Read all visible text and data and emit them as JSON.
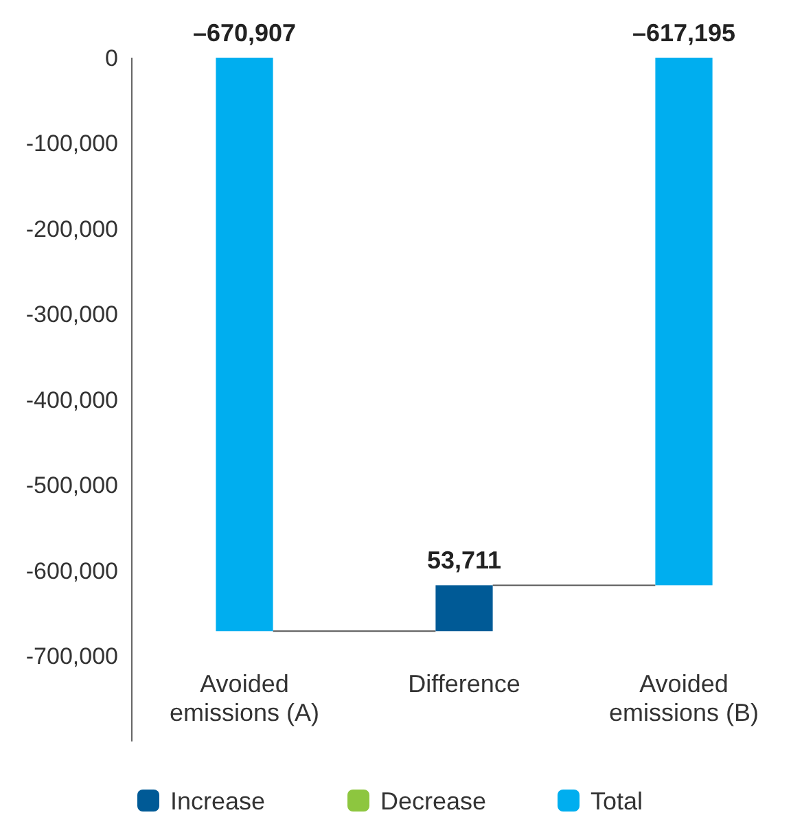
{
  "chart_data": {
    "type": "bar",
    "categories": [
      "Avoided emissions (A)",
      "Difference",
      "Avoided emissions (B)"
    ],
    "series": [
      {
        "name": "Increase",
        "color": "#005a96",
        "values": [
          null,
          53711,
          null
        ],
        "base": [
          null,
          -670907,
          null
        ],
        "value_labels": [
          null,
          "53,711",
          null
        ]
      },
      {
        "name": "Decrease",
        "color": "#8dc63f",
        "values": [
          null,
          null,
          null
        ]
      },
      {
        "name": "Total",
        "color": "#00aeef",
        "values": [
          -670907,
          null,
          -617195
        ],
        "value_labels": [
          "–670,907",
          null,
          "–617,195"
        ]
      }
    ],
    "ylim": [
      -800000,
      0
    ],
    "yticks": [
      0,
      {
        "value": -100000,
        "label": "-100,000"
      },
      {
        "value": -200000,
        "label": "-200,000"
      },
      {
        "value": -300000,
        "label": "-300,000"
      },
      {
        "value": -400000,
        "label": "-400,000"
      },
      {
        "value": -500000,
        "label": "-500,000"
      },
      {
        "value": -600000,
        "label": "-600,000"
      },
      {
        "value": -700000,
        "label": "-700,000"
      }
    ],
    "grid": false,
    "legend": "bottom"
  }
}
